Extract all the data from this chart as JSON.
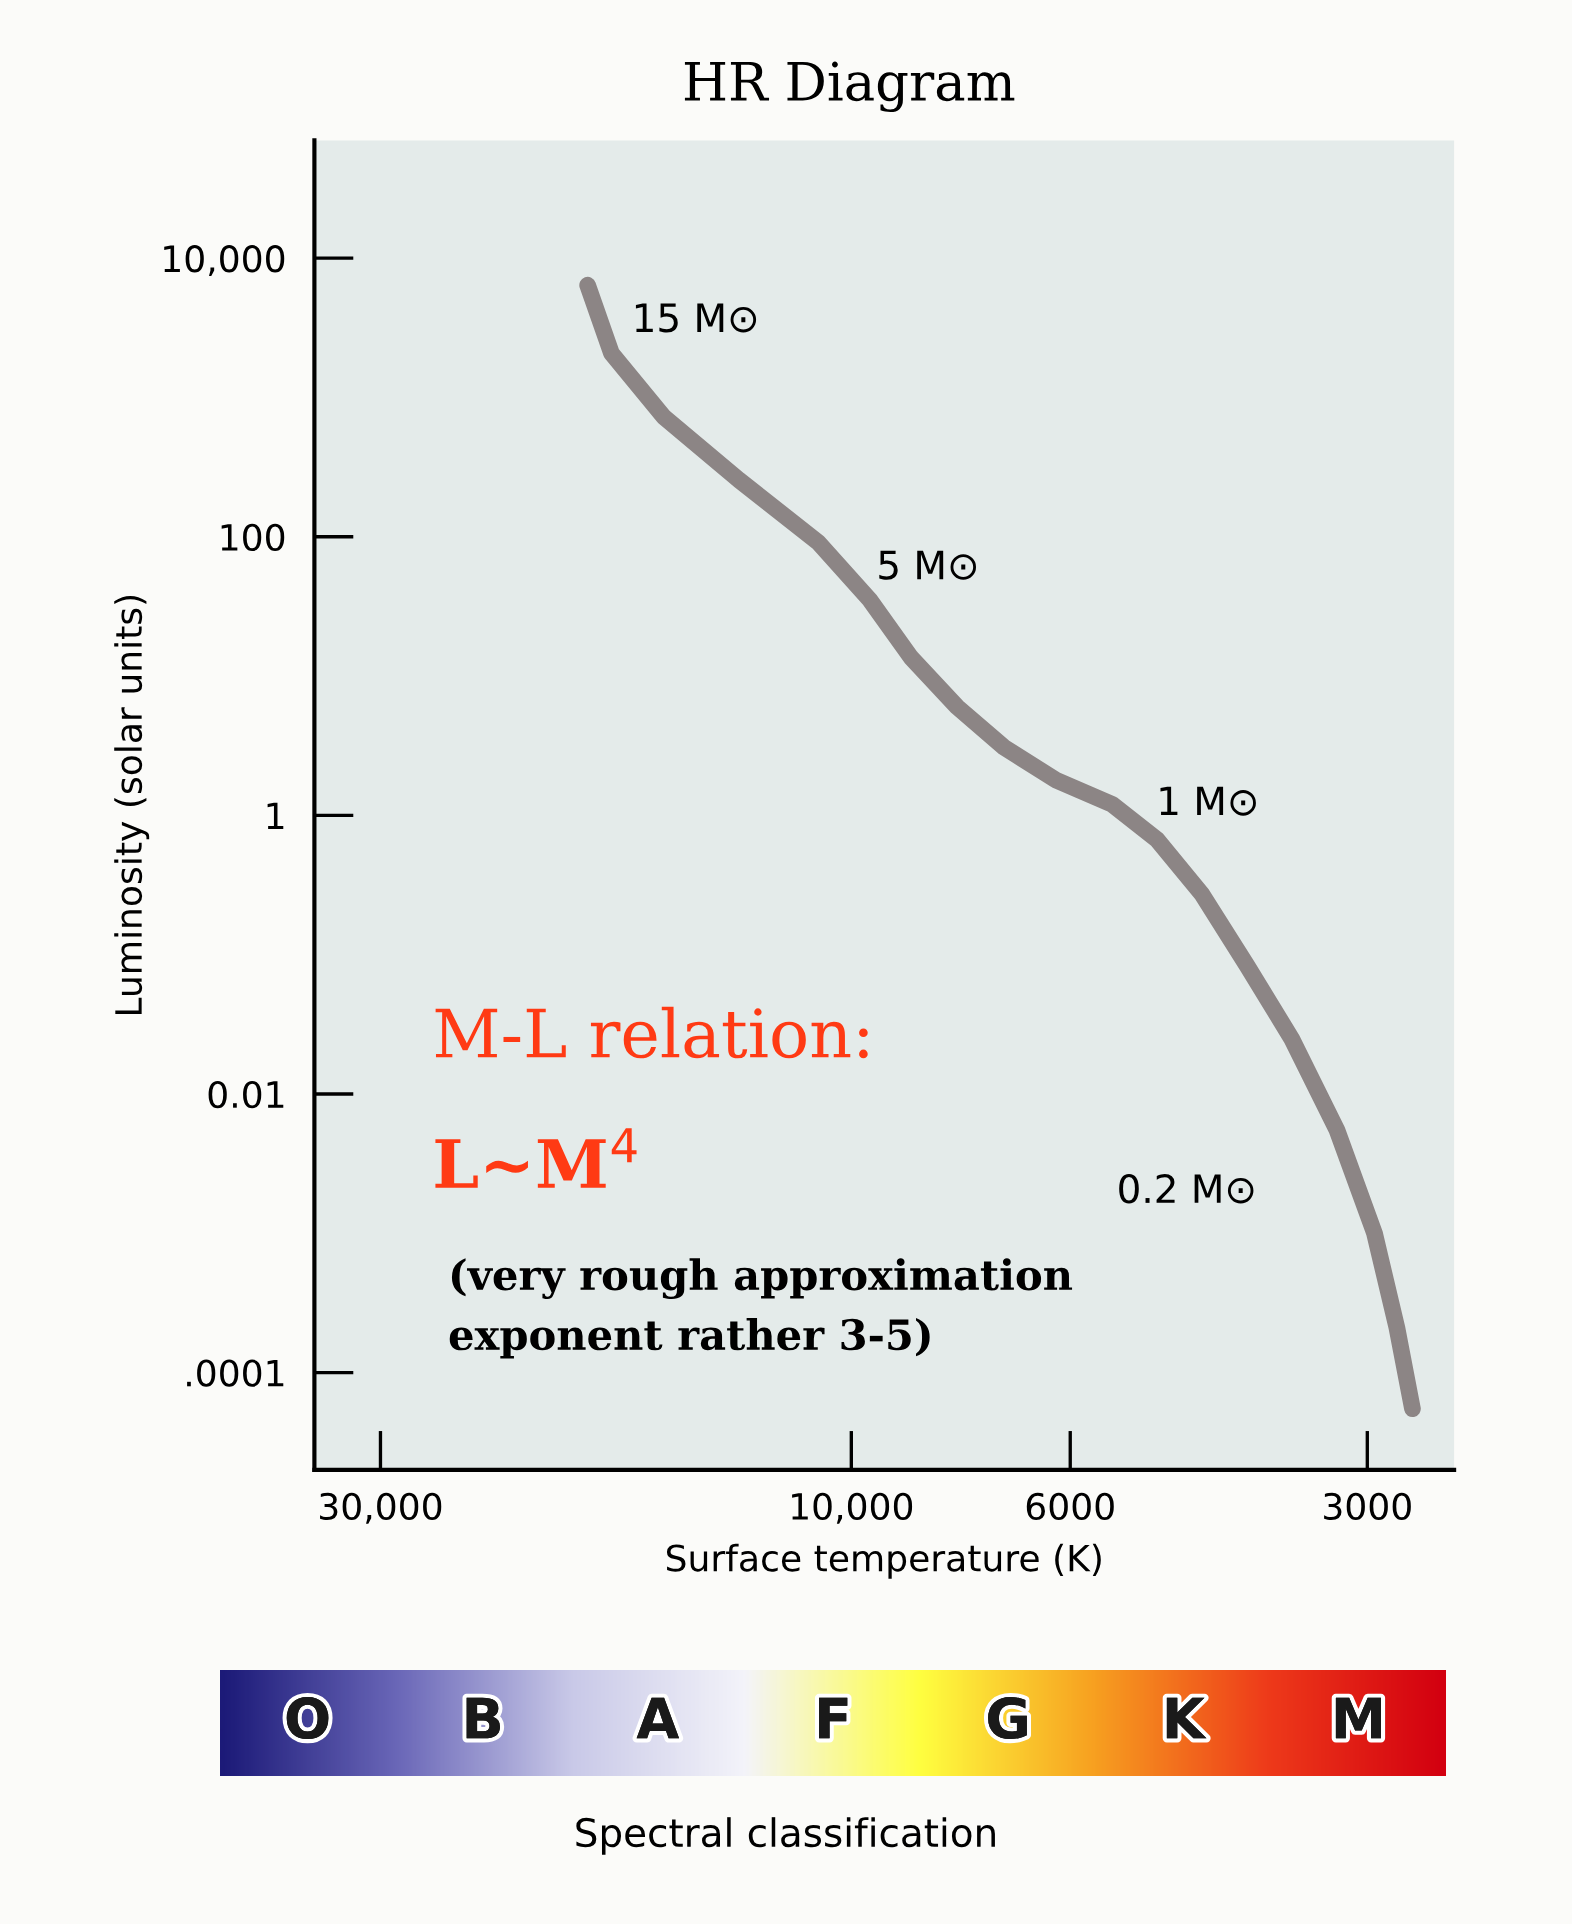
{
  "chart_data": {
    "type": "line",
    "title": "HR Diagram",
    "xlabel": "Surface temperature (K)",
    "ylabel": "Luminosity (solar units)",
    "x": [
      18500,
      17500,
      15500,
      13000,
      10800,
      9570,
      8700,
      7810,
      7010,
      6210,
      5440,
      4900,
      4410,
      3970,
      3580,
      3220,
      2950,
      2800,
      2700
    ],
    "series": [
      {
        "color": "#8c8585",
        "values": [
          6400,
          2080,
          730,
          256,
          91,
          35,
          13.6,
          6,
          3.1,
          1.8,
          1.2,
          0.67,
          0.27,
          0.083,
          0.025,
          0.0055,
          0.001,
          0.00021,
          5.5e-05
        ]
      }
    ],
    "xlim": [
      35000,
      2450
    ],
    "xticks": [
      {
        "value": 30000,
        "label": "30,000"
      },
      {
        "value": 10000,
        "label": "10,000"
      },
      6000,
      3000
    ],
    "ylim": [
      2e-05,
      70000
    ],
    "log": "xy",
    "yticks": [
      {
        "value": 10000,
        "label": "10,000"
      },
      100,
      1,
      0.01,
      {
        "value": 0.0001,
        "label": ".0001"
      }
    ],
    "grid": false,
    "marker": "none",
    "line_style": "solid",
    "annotations": [
      {
        "text": "15 M⊙",
        "x": 18500,
        "y": 6400
      },
      {
        "text": "5 M⊙",
        "x": 10800,
        "y": 91
      },
      {
        "text": "1 M⊙",
        "x": 5440,
        "y": 1.2
      },
      {
        "text": "0.2 M⊙",
        "x": 3220,
        "y": 0.0055
      },
      "M-L relation:",
      "L~M$^{4}$",
      "(very rough approximation\nexponent rather 3-5)",
      "O",
      "B",
      "A",
      "F",
      "G",
      "K",
      "M",
      "Spectral classification"
    ]
  }
}
